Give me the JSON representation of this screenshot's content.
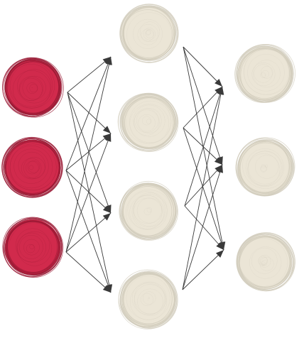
{
  "colors": {
    "input_node": "#d12a4c",
    "input_node_dark": "#9a1a34",
    "hidden_node": "#ebe5d6",
    "hidden_node_stroke": "#d2ccbc",
    "output_node": "#ebe5d6",
    "output_node_stroke": "#d2ccbc",
    "edge": "#3a3a3a"
  },
  "network": {
    "layers": [
      {
        "name": "input",
        "node_count": 3,
        "style": "sketch-filled"
      },
      {
        "name": "hidden",
        "node_count": 4,
        "style": "sketch-filled"
      },
      {
        "name": "output",
        "node_count": 3,
        "style": "sketch-filled"
      }
    ],
    "connections": "fully-connected",
    "arrowheads": true,
    "labels": []
  }
}
